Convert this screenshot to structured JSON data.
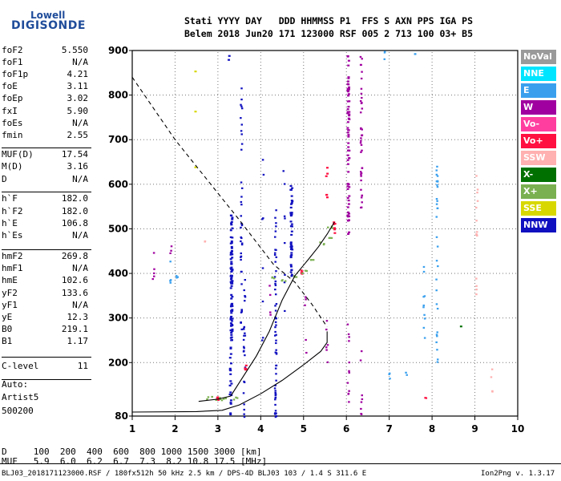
{
  "logo": {
    "line1": "Lowell",
    "line2": "DIGISONDE"
  },
  "header": {
    "row1": "Stati YYYY DAY   DDD HHMMSS P1  FFS S AXN PPS IGA PS",
    "row2": "Belem 2018 Jun20 171 123000 RSF 005 2 713 100 03+ B5"
  },
  "params": [
    {
      "label": "foF2",
      "value": "5.550"
    },
    {
      "label": "foF1",
      "value": "N/A"
    },
    {
      "label": "foF1p",
      "value": "4.21"
    },
    {
      "label": "foE",
      "value": "3.11"
    },
    {
      "label": "foEp",
      "value": "3.02"
    },
    {
      "label": "fxI",
      "value": "5.90"
    },
    {
      "label": "foEs",
      "value": "N/A"
    },
    {
      "label": "fmin",
      "value": "2.55"
    },
    {
      "label": "MUF(D)",
      "value": "17.54"
    },
    {
      "label": "M(D)",
      "value": "3.16"
    },
    {
      "label": "D",
      "value": "N/A"
    },
    {
      "label": "h`F",
      "value": "182.0"
    },
    {
      "label": "h`F2",
      "value": "182.0"
    },
    {
      "label": "h`E",
      "value": "106.8"
    },
    {
      "label": "h`Es",
      "value": "N/A"
    },
    {
      "label": "hmF2",
      "value": "269.8"
    },
    {
      "label": "hmF1",
      "value": "N/A"
    },
    {
      "label": "hmE",
      "value": "102.6"
    },
    {
      "label": "yF2",
      "value": "133.6"
    },
    {
      "label": "yF1",
      "value": "N/A"
    },
    {
      "label": "yE",
      "value": "12.3"
    },
    {
      "label": "B0",
      "value": "219.1"
    },
    {
      "label": "B1",
      "value": "1.17"
    },
    {
      "label": "C-level",
      "value": "11"
    }
  ],
  "auto": {
    "line1": "Auto:",
    "line2": "Artist5",
    "line3": "500200"
  },
  "legend": [
    {
      "label": "NoVal",
      "bg": "#9a9a9a",
      "fg": "#ffffff"
    },
    {
      "label": "NNE",
      "bg": "#00e5ff",
      "fg": "#ffffff"
    },
    {
      "label": "E",
      "bg": "#3aa0ee",
      "fg": "#ffffff"
    },
    {
      "label": "W",
      "bg": "#a000a0",
      "fg": "#ffffff"
    },
    {
      "label": "Vo-",
      "bg": "#ff3ea0",
      "fg": "#ffffff"
    },
    {
      "label": "Vo+",
      "bg": "#ff1040",
      "fg": "#ffffff"
    },
    {
      "label": "SSW",
      "bg": "#ffb0b0",
      "fg": "#ffffff"
    },
    {
      "label": "X-",
      "bg": "#007000",
      "fg": "#ffffff"
    },
    {
      "label": "X+",
      "bg": "#7ab050",
      "fg": "#ffffff"
    },
    {
      "label": "SSE",
      "bg": "#d8d800",
      "fg": "#ffffff"
    },
    {
      "label": "NNW",
      "bg": "#1010c0",
      "fg": "#ffffff"
    }
  ],
  "chart_data": {
    "type": "scatter",
    "x_ticks": [
      "1",
      "2",
      "3",
      "4",
      "5",
      "6",
      "7",
      "8",
      "9",
      "10"
    ],
    "y_ticks": [
      "80",
      "200",
      "300",
      "400",
      "500",
      "600",
      "700",
      "800",
      "900"
    ],
    "xlim": [
      1,
      10
    ],
    "ylim": [
      80,
      900
    ]
  },
  "footer": {
    "row_d": "D     100  200  400  600  800 1000 1500 3000 [km]",
    "row_muf": "MUF   5.9  6.0  6.2  6.7  7.3  8.2 10.8 17.5 [MHz]",
    "file": "BLJ03_2018171123000.RSF / 180fx512h 50 kHz 2.5 km / DPS-4D BLJ03 103 / 1.4 S 311.6 E",
    "version": "Ion2Png v. 1.3.17"
  }
}
